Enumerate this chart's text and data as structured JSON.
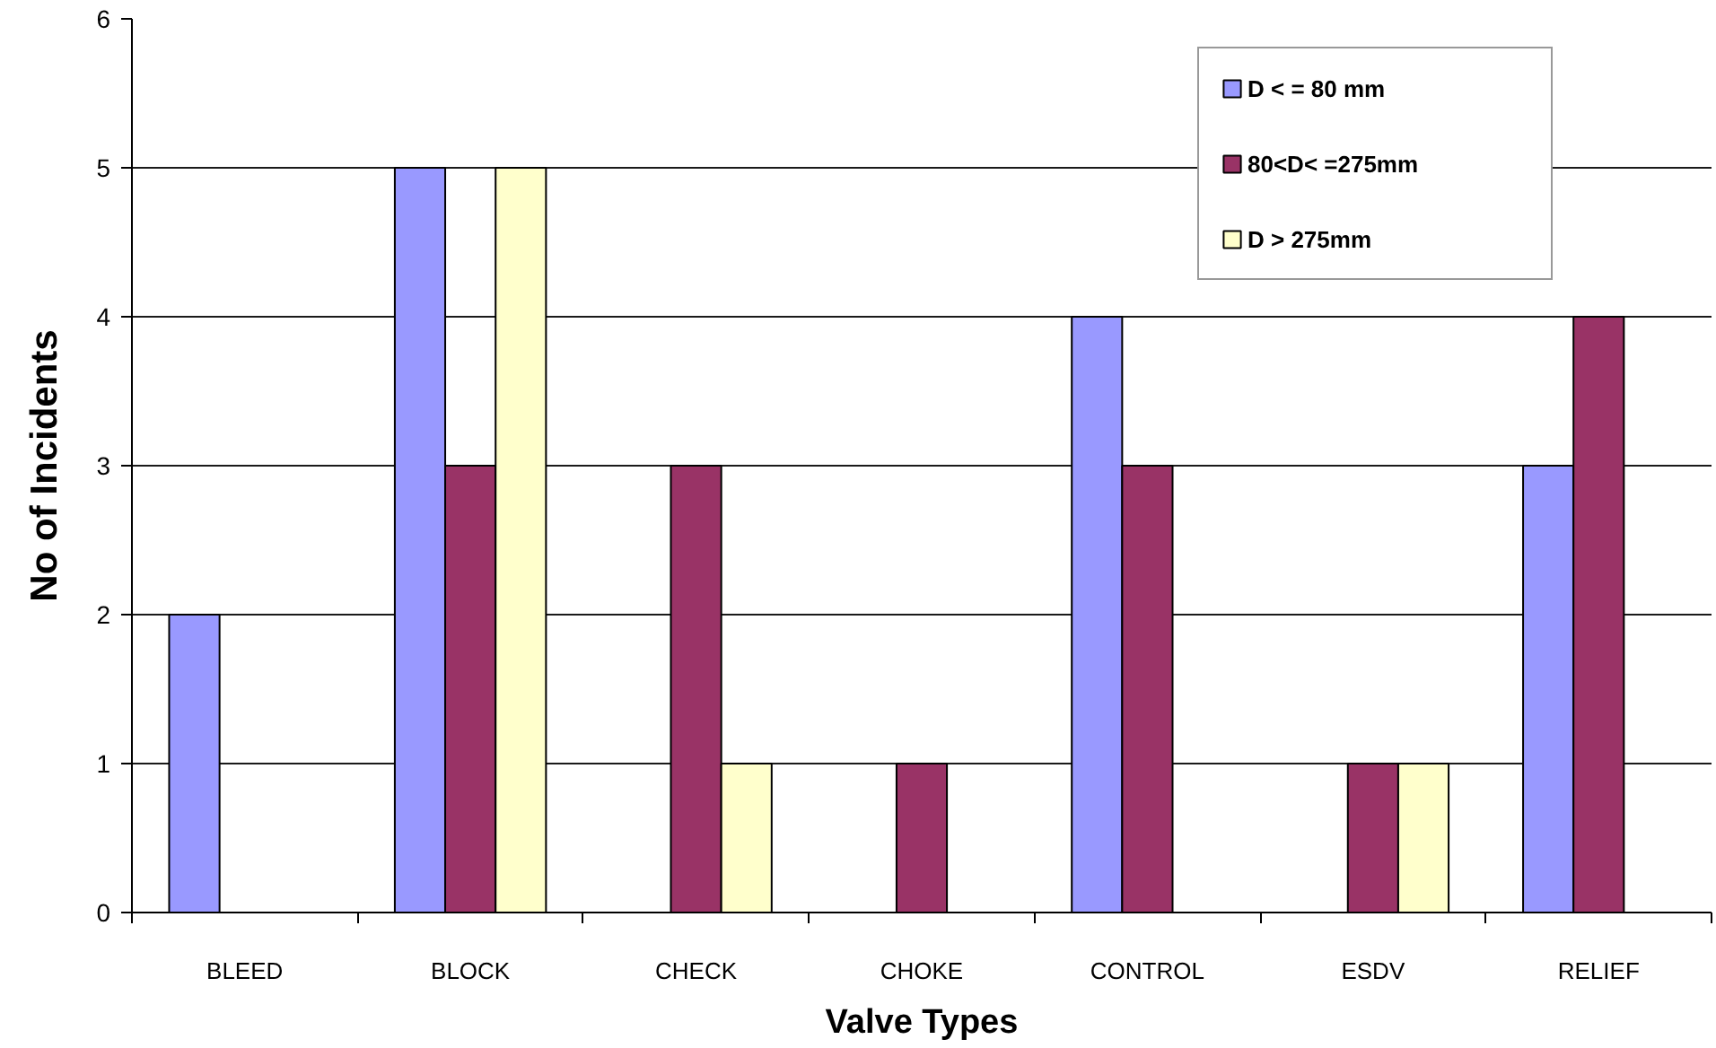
{
  "chart_data": {
    "type": "bar",
    "xlabel": "Valve Types",
    "ylabel": "No of Incidents",
    "categories": [
      "BLEED",
      "BLOCK",
      "CHECK",
      "CHOKE",
      "CONTROL",
      "ESDV",
      "RELIEF"
    ],
    "series": [
      {
        "name": "D < = 80 mm",
        "color": "#9999ff",
        "values": [
          2,
          5,
          null,
          null,
          4,
          null,
          3
        ]
      },
      {
        "name": "80<D< =275mm",
        "color": "#993366",
        "values": [
          null,
          3,
          3,
          1,
          3,
          1,
          4
        ]
      },
      {
        "name": "D > 275mm",
        "color": "#ffffcc",
        "values": [
          null,
          5,
          1,
          null,
          null,
          1,
          null
        ]
      }
    ],
    "ylim": [
      0,
      6
    ],
    "yticks": [
      0,
      1,
      2,
      3,
      4,
      5,
      6
    ],
    "grid": "y",
    "legend": "top right"
  }
}
